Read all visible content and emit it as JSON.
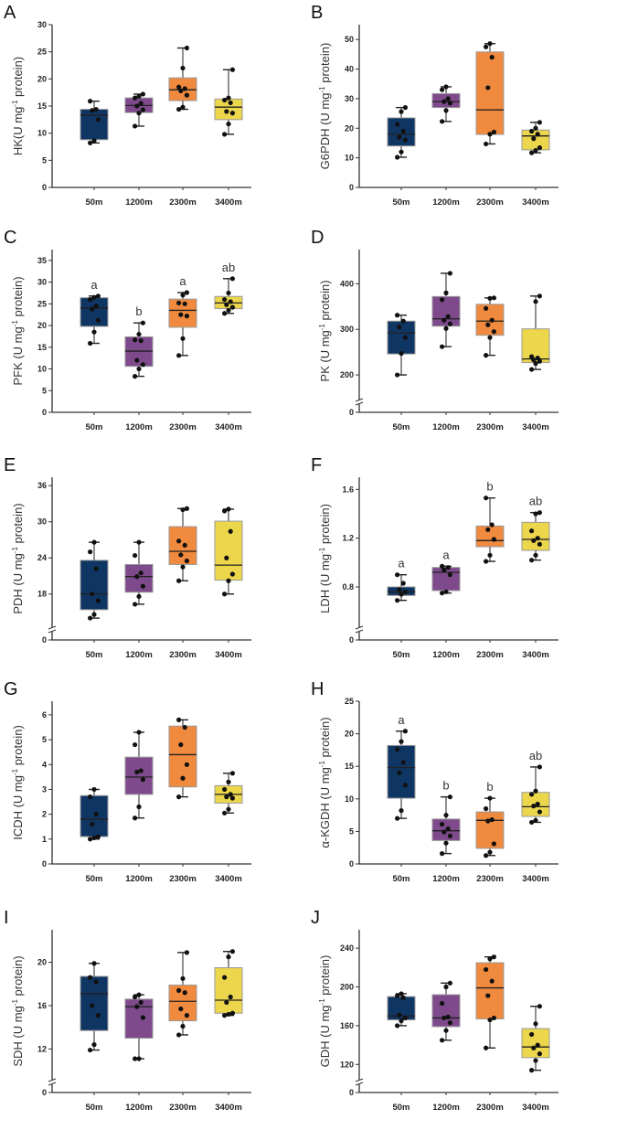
{
  "chart_data": [
    {
      "type": "box",
      "panel": "A",
      "ylabel": {
        "main": "HK(U mg",
        "sup": "-1",
        "tail": " protein)"
      },
      "ylim": [
        0,
        30
      ],
      "ticks": [
        0,
        5,
        10,
        15,
        20,
        25,
        30
      ],
      "axis_break": false,
      "categories": [
        "50m",
        "1200m",
        "2300m",
        "3400m"
      ],
      "boxes": [
        [
          8.2,
          8.8,
          13.3,
          14.4,
          15.9
        ],
        [
          11.3,
          13.8,
          15.1,
          16.5,
          17.2
        ],
        [
          14.4,
          16.0,
          18.0,
          20.2,
          25.7
        ],
        [
          9.8,
          12.5,
          14.8,
          16.3,
          21.7
        ]
      ],
      "points": [
        [
          8.2,
          8.6,
          12.5,
          14.2,
          14.4,
          15.9
        ],
        [
          11.3,
          13.7,
          14.3,
          15.0,
          15.5,
          16.5,
          16.8,
          17.2
        ],
        [
          14.4,
          14.8,
          17.0,
          17.8,
          18.2,
          18.5,
          22.0,
          25.7
        ],
        [
          9.8,
          11.7,
          13.7,
          14.0,
          15.6,
          16.1,
          16.5,
          21.7
        ]
      ],
      "letters": []
    },
    {
      "type": "box",
      "panel": "B",
      "ylabel": {
        "main": "G6PDH (U mg",
        "sup": "-1",
        "tail": " protein)"
      },
      "ylim": [
        0,
        55
      ],
      "ticks": [
        0,
        10,
        20,
        30,
        40,
        50
      ],
      "axis_break": false,
      "categories": [
        "50m",
        "1200m",
        "2300m",
        "3400m"
      ],
      "boxes": [
        [
          10.2,
          14,
          18,
          23.5,
          27
        ],
        [
          22.3,
          27,
          29,
          31.7,
          34
        ],
        [
          14.7,
          17.9,
          26.2,
          45.8,
          48.6
        ],
        [
          11.7,
          12.7,
          17.4,
          19.4,
          22
        ]
      ],
      "points": [
        [
          10.2,
          12,
          16,
          17,
          19,
          21.3,
          25.6,
          27
        ],
        [
          22.3,
          26,
          28.5,
          29,
          30,
          33,
          34
        ],
        [
          14.7,
          18,
          18.7,
          33.7,
          44,
          47.5,
          48.6
        ],
        [
          11.7,
          12.5,
          13.4,
          16.5,
          18,
          19,
          20,
          22
        ]
      ],
      "letters": []
    },
    {
      "type": "box",
      "panel": "C",
      "ylabel": {
        "main": "PFK (U mg",
        "sup": "-1",
        "tail": " protein)"
      },
      "ylim": [
        0,
        37.5
      ],
      "ticks": [
        0,
        5,
        10,
        15,
        20,
        25,
        30,
        35
      ],
      "axis_break": false,
      "categories": [
        "50m",
        "1200m",
        "2300m",
        "3400m"
      ],
      "boxes": [
        [
          15.9,
          19.8,
          24,
          26.4,
          26.8
        ],
        [
          8.3,
          10.6,
          14.1,
          17.4,
          20.6
        ],
        [
          13.1,
          19.6,
          23.5,
          26.1,
          27.6
        ],
        [
          22.8,
          23.9,
          25.2,
          26.7,
          30.8
        ]
      ],
      "points": [
        [
          15.9,
          18.5,
          21.2,
          23.8,
          24.5,
          26,
          26.5,
          26.8
        ],
        [
          8.3,
          10,
          11,
          12,
          16.5,
          16.7,
          18,
          20.6
        ],
        [
          13.1,
          17,
          22.2,
          22.5,
          25,
          25.2,
          27,
          27.6
        ],
        [
          22.8,
          23.5,
          24.2,
          24.8,
          25.5,
          26,
          27.5,
          30.8
        ]
      ],
      "letters": [
        "a",
        "b",
        "a",
        "ab"
      ]
    },
    {
      "type": "box",
      "panel": "D",
      "ylabel": {
        "main": "PK (U mg",
        "sup": "-1",
        "tail": " protein)"
      },
      "ylim": [
        154,
        475
      ],
      "ticks": [
        200,
        300,
        400
      ],
      "axis_break": true,
      "categories": [
        "50m",
        "1200m",
        "2300m",
        "3400m"
      ],
      "boxes": [
        [
          200,
          246,
          292,
          318,
          331
        ],
        [
          262,
          307,
          323,
          372,
          423
        ],
        [
          243,
          287,
          318,
          355,
          369
        ],
        [
          212,
          227,
          235,
          301,
          373
        ]
      ],
      "points": [
        [
          200,
          247,
          282,
          305,
          318,
          331
        ],
        [
          262,
          302,
          312,
          320,
          328,
          365,
          380,
          423
        ],
        [
          243,
          282,
          295,
          310,
          320,
          346,
          368,
          369
        ],
        [
          212,
          225,
          230,
          233,
          237,
          240,
          361,
          373
        ]
      ],
      "letters": []
    },
    {
      "type": "box",
      "panel": "E",
      "ylabel": {
        "main": "PDH (U mg",
        "sup": "-1",
        "tail": " protein)"
      },
      "ylim": [
        13.1,
        37.4
      ],
      "ticks": [
        18,
        24,
        30,
        36
      ],
      "axis_break": true,
      "categories": [
        "50m",
        "1200m",
        "2300m",
        "3400m"
      ],
      "boxes": [
        [
          14,
          15.4,
          18,
          23.6,
          26.6
        ],
        [
          16.3,
          18.3,
          20.9,
          22.9,
          26.6
        ],
        [
          20.2,
          22.9,
          25.1,
          29.2,
          32.2
        ],
        [
          18,
          20.3,
          22.8,
          30.1,
          32.1
        ]
      ],
      "points": [
        [
          14,
          14.6,
          16.9,
          18,
          22.2,
          25,
          26.6
        ],
        [
          16.3,
          17.6,
          19.3,
          20.9,
          21.5,
          24.4,
          26.6
        ],
        [
          20.2,
          22.5,
          23.5,
          24.5,
          26.1,
          26.8,
          32,
          32.2
        ],
        [
          18,
          20.2,
          21.3,
          24,
          28.4,
          31.8,
          32.1
        ]
      ],
      "letters": []
    },
    {
      "type": "box",
      "panel": "F",
      "ylabel": {
        "main": "LDH (U mg",
        "sup": "-1",
        "tail": " protein)"
      },
      "ylim": [
        0.5,
        1.7
      ],
      "ticks": [
        0.8,
        1.2,
        1.6
      ],
      "axis_break": true,
      "categories": [
        "50m",
        "1200m",
        "2300m",
        "3400m"
      ],
      "boxes": [
        [
          0.69,
          0.73,
          0.76,
          0.8,
          0.9
        ],
        [
          0.75,
          0.77,
          0.92,
          0.96,
          0.97
        ],
        [
          1.01,
          1.13,
          1.18,
          1.3,
          1.53
        ],
        [
          1.02,
          1.1,
          1.19,
          1.33,
          1.41
        ]
      ],
      "points": [
        [
          0.69,
          0.74,
          0.76,
          0.78,
          0.83,
          0.9
        ],
        [
          0.75,
          0.76,
          0.9,
          0.94,
          0.96,
          0.97
        ],
        [
          1.01,
          1.06,
          1.19,
          1.27,
          1.31,
          1.53
        ],
        [
          1.02,
          1.06,
          1.15,
          1.18,
          1.2,
          1.26,
          1.4,
          1.41
        ]
      ],
      "letters": [
        "a",
        "a",
        "b",
        "ab"
      ]
    },
    {
      "type": "box",
      "panel": "G",
      "ylabel": {
        "main": "ICDH (U mg",
        "sup": "-1",
        "tail": " protein)"
      },
      "ylim": [
        0,
        6.55
      ],
      "ticks": [
        0,
        1,
        2,
        3,
        4,
        5,
        6
      ],
      "axis_break": false,
      "categories": [
        "50m",
        "1200m",
        "2300m",
        "3400m"
      ],
      "boxes": [
        [
          1.0,
          1.1,
          1.8,
          2.75,
          3.0
        ],
        [
          1.85,
          2.8,
          3.5,
          4.3,
          5.3
        ],
        [
          2.7,
          3.1,
          4.4,
          5.55,
          5.8
        ],
        [
          2.05,
          2.45,
          2.8,
          3.15,
          3.65
        ]
      ],
      "points": [
        [
          1.0,
          1.05,
          1.1,
          1.6,
          2.0,
          2.7,
          3.0
        ],
        [
          1.85,
          2.3,
          3.4,
          3.7,
          3.75,
          4.8,
          5.3
        ],
        [
          2.7,
          3.45,
          4.0,
          4.8,
          5.5,
          5.8
        ],
        [
          2.05,
          2.2,
          2.65,
          2.7,
          2.8,
          3.0,
          3.3,
          3.65
        ]
      ],
      "letters": []
    },
    {
      "type": "box",
      "panel": "H",
      "ylabel": {
        "main": "α-KGDH (U mg",
        "sup": "-1",
        "tail": " protein)"
      },
      "ylim": [
        0,
        25
      ],
      "ticks": [
        0,
        5,
        10,
        15,
        20,
        25
      ],
      "axis_break": false,
      "categories": [
        "50m",
        "1200m",
        "2300m",
        "3400m"
      ],
      "boxes": [
        [
          7,
          10.1,
          14.8,
          18.2,
          20.4
        ],
        [
          1.6,
          3.6,
          5.1,
          6.9,
          10.3
        ],
        [
          1.3,
          2.4,
          6.7,
          8.0,
          10.1
        ],
        [
          6.4,
          7.3,
          8.8,
          11.0,
          14.9
        ]
      ],
      "points": [
        [
          7,
          8.2,
          12.1,
          14,
          15.6,
          17.6,
          18.8,
          20.4
        ],
        [
          1.6,
          3.2,
          4.3,
          4.9,
          5.4,
          6.1,
          7.5,
          10.3
        ],
        [
          1.3,
          1.8,
          3.1,
          6.6,
          6.8,
          8.5,
          10.1
        ],
        [
          6.4,
          6.7,
          8,
          8.9,
          9.2,
          10.7,
          11.2,
          14.9
        ]
      ],
      "letters": [
        "a",
        "b",
        "b",
        "ab"
      ]
    },
    {
      "type": "box",
      "panel": "I",
      "ylabel": {
        "main": "SDH (U mg",
        "sup": "-1",
        "tail": " protein)"
      },
      "ylim": [
        9.5,
        23
      ],
      "ticks": [
        12,
        16,
        20
      ],
      "axis_break": true,
      "categories": [
        "50m",
        "1200m",
        "2300m",
        "3400m"
      ],
      "boxes": [
        [
          11.9,
          13.7,
          17.1,
          18.7,
          19.9
        ],
        [
          11.1,
          13,
          15.9,
          16.6,
          17
        ],
        [
          13.3,
          14.6,
          16.4,
          17.9,
          20.9
        ],
        [
          15.1,
          15.3,
          16.5,
          19.5,
          21
        ]
      ],
      "points": [
        [
          11.9,
          12.4,
          15.1,
          16,
          18.2,
          18.6,
          19.9
        ],
        [
          11.1,
          11.1,
          14.9,
          15.9,
          16.3,
          16.8,
          17
        ],
        [
          13.3,
          14.1,
          15.1,
          15.7,
          17.2,
          17.4,
          18.5,
          20.9
        ],
        [
          15.1,
          15.2,
          15.3,
          16.3,
          16.8,
          18.6,
          20.5,
          21
        ]
      ],
      "letters": []
    },
    {
      "type": "box",
      "panel": "J",
      "ylabel": {
        "main": "GDH (U mg",
        "sup": "-1",
        "tail": " protein)"
      },
      "ylim": [
        108,
        259
      ],
      "ticks": [
        120,
        160,
        200,
        240
      ],
      "axis_break": true,
      "categories": [
        "50m",
        "1200m",
        "2300m",
        "3400m"
      ],
      "boxes": [
        [
          160,
          166,
          170,
          190,
          193
        ],
        [
          145,
          159,
          168,
          192,
          204
        ],
        [
          137,
          167,
          199,
          225,
          231
        ],
        [
          114,
          127,
          138,
          157,
          180
        ]
      ],
      "points": [
        [
          160,
          165,
          168,
          171,
          189,
          191,
          193
        ],
        [
          145,
          155,
          163,
          168,
          169,
          183,
          200,
          204
        ],
        [
          137,
          166,
          168,
          191,
          206,
          218,
          229,
          231
        ],
        [
          114,
          124,
          131,
          137,
          140,
          151,
          162,
          180
        ]
      ],
      "letters": []
    }
  ],
  "zero_label": "0",
  "colors": {
    "50m": "#0f3563",
    "1200m": "#7e4a8c",
    "2300m": "#f08a3e",
    "3400m": "#ecd64c",
    "axis": "#333333",
    "point": "#111111"
  }
}
